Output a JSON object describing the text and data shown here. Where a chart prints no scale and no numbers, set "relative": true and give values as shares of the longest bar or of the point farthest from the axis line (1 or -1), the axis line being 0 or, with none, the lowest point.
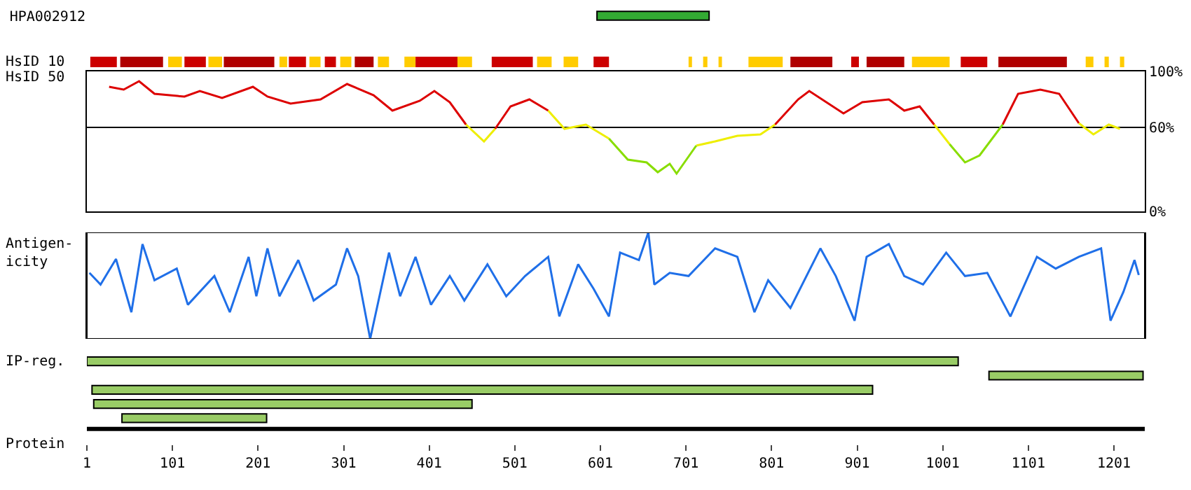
{
  "chart_data": [
    {
      "type": "bar",
      "orientation": "horizontal",
      "categories": [
        "HPA002912"
      ],
      "base": [
        597
      ],
      "values": [
        131
      ],
      "color": "#33aa33",
      "ylabel": "HsID 10",
      "xticks": [
        1,
        101,
        201,
        301,
        401,
        501,
        601,
        701,
        801,
        901,
        1001,
        1101,
        1201
      ],
      "tick_labels": "y",
      "bands": [
        {
          "axis": "x",
          "from": 5,
          "to": 36,
          "color": "#cc0000"
        },
        {
          "axis": "x",
          "from": 40,
          "to": 90,
          "color": "#b00000"
        },
        {
          "axis": "x",
          "from": 96,
          "to": 112,
          "color": "#ffcc00"
        },
        {
          "axis": "x",
          "from": 115,
          "to": 140,
          "color": "#cc0000"
        },
        {
          "axis": "x",
          "from": 143,
          "to": 159,
          "color": "#ffcc00"
        },
        {
          "axis": "x",
          "from": 161,
          "to": 220,
          "color": "#b00000"
        },
        {
          "axis": "x",
          "from": 226,
          "to": 235,
          "color": "#ffcc00"
        },
        {
          "axis": "x",
          "from": 237,
          "to": 257,
          "color": "#cc0000"
        },
        {
          "axis": "x",
          "from": 261,
          "to": 274,
          "color": "#ffcc00"
        },
        {
          "axis": "x",
          "from": 279,
          "to": 292,
          "color": "#cc0000"
        },
        {
          "axis": "x",
          "from": 297,
          "to": 310,
          "color": "#ffcc00"
        },
        {
          "axis": "x",
          "from": 314,
          "to": 336,
          "color": "#b00000"
        },
        {
          "axis": "x",
          "from": 341,
          "to": 354,
          "color": "#ffcc00"
        },
        {
          "axis": "x",
          "from": 372,
          "to": 385,
          "color": "#ffcc00"
        },
        {
          "axis": "x",
          "from": 385,
          "to": 434,
          "color": "#cc0000"
        },
        {
          "axis": "x",
          "from": 434,
          "to": 451,
          "color": "#ffcc00"
        },
        {
          "axis": "x",
          "from": 474,
          "to": 522,
          "color": "#cc0000"
        },
        {
          "axis": "x",
          "from": 527,
          "to": 544,
          "color": "#ffcc00"
        },
        {
          "axis": "x",
          "from": 558,
          "to": 575,
          "color": "#ffcc00"
        },
        {
          "axis": "x",
          "from": 593,
          "to": 611,
          "color": "#cc0000"
        },
        {
          "axis": "x",
          "from": 704,
          "to": 708,
          "color": "#ffcc00"
        },
        {
          "axis": "x",
          "from": 721,
          "to": 726,
          "color": "#ffcc00"
        },
        {
          "axis": "x",
          "from": 739,
          "to": 743,
          "color": "#ffcc00"
        },
        {
          "axis": "x",
          "from": 774,
          "to": 814,
          "color": "#ffcc00"
        },
        {
          "axis": "x",
          "from": 823,
          "to": 872,
          "color": "#b00000"
        },
        {
          "axis": "x",
          "from": 894,
          "to": 903,
          "color": "#cc0000"
        },
        {
          "axis": "x",
          "from": 912,
          "to": 956,
          "color": "#b00000"
        },
        {
          "axis": "x",
          "from": 965,
          "to": 1009,
          "color": "#ffcc00"
        },
        {
          "axis": "x",
          "from": 1022,
          "to": 1053,
          "color": "#cc0000"
        },
        {
          "axis": "x",
          "from": 1066,
          "to": 1146,
          "color": "#b00000"
        },
        {
          "axis": "x",
          "from": 1168,
          "to": 1177,
          "color": "#ffcc00"
        },
        {
          "axis": "x",
          "from": 1190,
          "to": 1195,
          "color": "#ffcc00"
        },
        {
          "axis": "x",
          "from": 1208,
          "to": 1213,
          "color": "#ffcc00"
        }
      ]
    },
    {
      "type": "line",
      "ylabel": "HsID 50",
      "xlim": [
        1,
        1237
      ],
      "xticks": [
        1,
        101,
        201,
        301,
        401,
        501,
        601,
        701,
        801,
        901,
        1001,
        1101,
        1201
      ],
      "ylim": [
        0,
        100
      ],
      "yticks": [
        {
          "value": 0,
          "label": "0%"
        },
        {
          "value": 60,
          "label": "60%"
        },
        {
          "value": 100,
          "label": "100%"
        }
      ],
      "tick_labels": "y",
      "ref_lines": [
        {
          "axis": "y",
          "value": 60,
          "color": "#000000"
        }
      ],
      "x": [
        27,
        44,
        62,
        80,
        115,
        133,
        159,
        195,
        212,
        239,
        274,
        305,
        336,
        358,
        390,
        407,
        425,
        444,
        465,
        478,
        496,
        518,
        540,
        559,
        584,
        611,
        633,
        655,
        668,
        682,
        690,
        713,
        735,
        761,
        788,
        805,
        832,
        845,
        885,
        907,
        938,
        956,
        974,
        991,
        1009,
        1027,
        1044,
        1071,
        1089,
        1115,
        1137,
        1160,
        1177,
        1195,
        1208
      ],
      "series": [
        {
          "color": "#dd0000",
          "values": [
            89,
            87,
            93,
            84,
            82,
            86,
            81,
            89,
            82,
            77,
            80,
            91,
            83,
            72,
            79,
            86,
            78,
            62,
            null,
            59,
            75,
            80,
            72,
            null,
            null,
            null,
            null,
            null,
            null,
            null,
            null,
            null,
            null,
            null,
            null,
            62,
            80,
            86,
            70,
            78,
            80,
            72,
            75,
            62,
            null,
            null,
            null,
            62,
            84,
            87,
            84,
            63,
            null,
            null,
            null
          ]
        },
        {
          "color": "#eeee00",
          "values": [
            null,
            null,
            null,
            null,
            null,
            null,
            null,
            null,
            null,
            null,
            null,
            null,
            null,
            null,
            null,
            null,
            null,
            62,
            50,
            59,
            null,
            null,
            72,
            59,
            62,
            52,
            null,
            null,
            null,
            null,
            null,
            47,
            50,
            54,
            55,
            62,
            null,
            null,
            null,
            null,
            null,
            null,
            null,
            62,
            48,
            null,
            null,
            null,
            null,
            null,
            null,
            63,
            55,
            62,
            59
          ]
        },
        {
          "color": "#88dd00",
          "values": [
            null,
            null,
            null,
            null,
            null,
            null,
            null,
            null,
            null,
            null,
            null,
            null,
            null,
            null,
            null,
            null,
            null,
            null,
            null,
            null,
            null,
            null,
            null,
            null,
            null,
            52,
            37,
            35,
            28,
            34,
            27,
            47,
            null,
            null,
            null,
            null,
            null,
            null,
            null,
            null,
            null,
            null,
            null,
            null,
            48,
            35,
            40,
            62,
            null,
            null,
            null,
            null,
            null,
            null,
            null
          ]
        }
      ]
    },
    {
      "type": "line",
      "relative": true,
      "ylabel": "Antigen-\nicity",
      "xlim": [
        1,
        1237
      ],
      "xticks": [
        1,
        101,
        201,
        301,
        401,
        501,
        601,
        701,
        801,
        901,
        1001,
        1101,
        1201
      ],
      "tick_labels": false,
      "x": [
        4,
        17,
        35,
        53,
        66,
        80,
        106,
        119,
        150,
        168,
        190,
        199,
        212,
        226,
        248,
        266,
        292,
        305,
        318,
        332,
        354,
        367,
        385,
        403,
        425,
        442,
        469,
        491,
        513,
        540,
        553,
        575,
        593,
        611,
        624,
        646,
        657,
        664,
        682,
        704,
        735,
        761,
        781,
        797,
        823,
        858,
        876,
        898,
        912,
        938,
        956,
        978,
        1005,
        1027,
        1053,
        1080,
        1111,
        1133,
        1160,
        1186,
        1197,
        1212,
        1225,
        1230
      ],
      "series": [
        {
          "color": "#1f6fe8",
          "values": [
            0.62,
            0.51,
            0.75,
            0.25,
            0.89,
            0.55,
            0.66,
            0.32,
            0.59,
            0.25,
            0.77,
            0.4,
            0.85,
            0.4,
            0.74,
            0.36,
            0.51,
            0.85,
            0.59,
            0,
            0.81,
            0.4,
            0.77,
            0.32,
            0.59,
            0.36,
            0.7,
            0.4,
            0.59,
            0.77,
            0.21,
            0.7,
            0.47,
            0.21,
            0.81,
            0.74,
            1,
            0.51,
            0.62,
            0.59,
            0.85,
            0.77,
            0.25,
            0.55,
            0.29,
            0.85,
            0.59,
            0.17,
            0.77,
            0.89,
            0.59,
            0.51,
            0.81,
            0.59,
            0.62,
            0.21,
            0.77,
            0.66,
            0.77,
            0.85,
            0.17,
            0.44,
            0.74,
            0.6
          ]
        }
      ]
    },
    {
      "type": "bar",
      "orientation": "horizontal",
      "ylabel": "IP-reg.",
      "xlabel": "Protein",
      "categories": [
        null,
        null,
        null,
        null,
        null
      ],
      "xlim": [
        1,
        1237
      ],
      "xticks": [
        1,
        101,
        201,
        301,
        401,
        501,
        601,
        701,
        801,
        901,
        1001,
        1101,
        1201
      ],
      "tick_labels": "x",
      "base": [
        1,
        1055,
        7,
        9,
        42
      ],
      "values": [
        1018,
        180,
        912,
        442,
        169
      ],
      "color": "#99cc66"
    }
  ]
}
